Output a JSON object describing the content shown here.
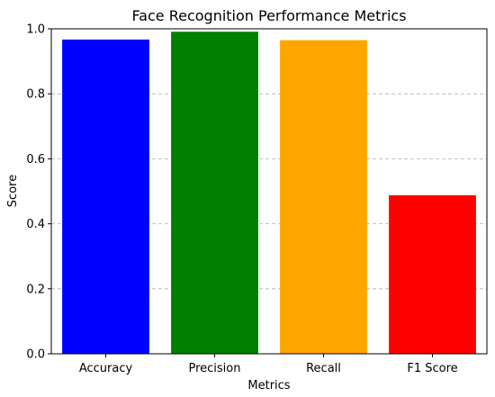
{
  "chart_data": {
    "type": "bar",
    "title": "Face Recognition Performance Metrics",
    "xlabel": "Metrics",
    "ylabel": "Score",
    "categories": [
      "Accuracy",
      "Precision",
      "Recall",
      "F1 Score"
    ],
    "values": [
      0.967,
      0.991,
      0.965,
      0.488
    ],
    "colors": [
      "#0000ff",
      "#008000",
      "#ffa500",
      "#ff0000"
    ],
    "ylim": [
      0,
      1.0
    ],
    "yticks": [
      "0.0",
      "0.2",
      "0.4",
      "0.6",
      "0.8",
      "1.0"
    ],
    "grid": "y-dashed",
    "legend": "none"
  }
}
